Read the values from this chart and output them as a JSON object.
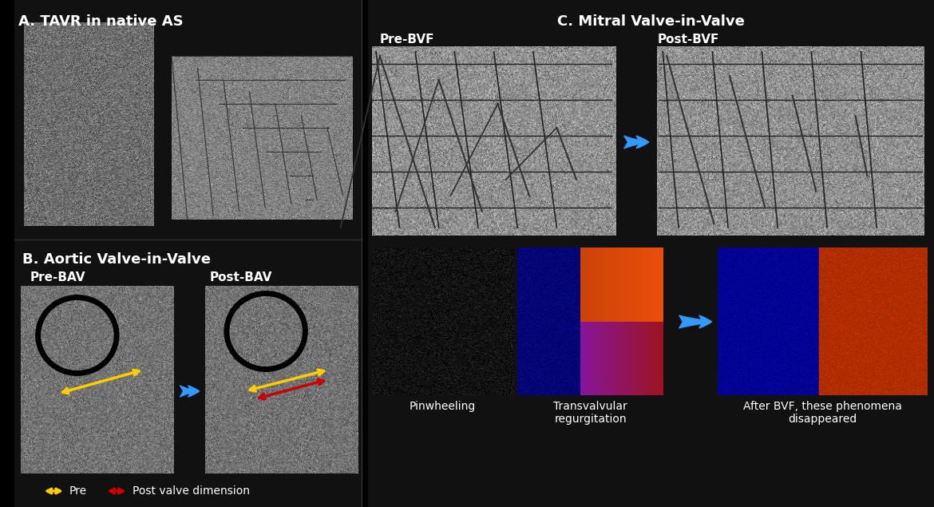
{
  "background_color": "#000000",
  "title_A": "A. TAVR in native AS",
  "title_B": "B. Aortic Valve-in-Valve",
  "title_C": "C. Mitral Valve-in-Valve",
  "label_pre_bav": "Pre-BAV",
  "label_post_bav": "Post-BAV",
  "label_pre_bvf": "Pre-BVF",
  "label_post_bvf": "Post-BVF",
  "label_pinwheeling": "Pinwheeling",
  "label_transvalvular": "Transvalvular\nregurgitation",
  "label_after_bvf": "After BVF, these phenomena\ndisappeared",
  "legend_pre": "Pre",
  "legend_post": "Post valve dimension",
  "arrow_color": "#3399ff",
  "yellow_color": "#ffcc00",
  "red_color": "#cc0000",
  "text_color": "#ffffff",
  "panel_gray_light": "#aaaaaa",
  "panel_gray_dark": "#555555",
  "panel_gray_mid": "#888888"
}
